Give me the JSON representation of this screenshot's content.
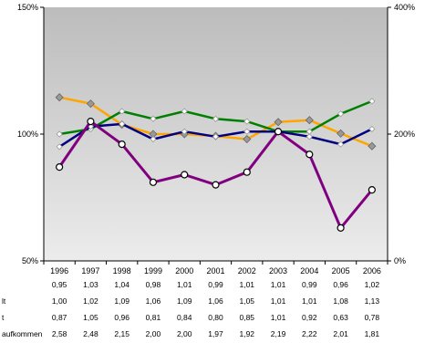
{
  "chart_data": {
    "type": "line",
    "title": "",
    "xlabel": "",
    "ylabel": "",
    "categories": [
      "1996",
      "1997",
      "1998",
      "1999",
      "2000",
      "2001",
      "2002",
      "2003",
      "2004",
      "2005",
      "2006"
    ],
    "y_left": {
      "ticks": [
        "150%",
        "100%",
        "50%"
      ],
      "ylim": [
        50,
        150
      ]
    },
    "y_right": {
      "ticks": [
        "400%",
        "200%",
        "0%"
      ],
      "ylim": [
        0,
        400
      ]
    },
    "grid": false,
    "legend": "none",
    "series": [
      {
        "values": [
          0.95,
          1.03,
          1.04,
          0.98,
          1.01,
          0.99,
          1.01,
          1.01,
          0.99,
          0.96,
          1.02
        ],
        "axis": "left",
        "color": "#000080",
        "marker": "diamond-hollow"
      },
      {
        "values": [
          1.0,
          1.02,
          1.09,
          1.06,
          1.09,
          1.06,
          1.05,
          1.01,
          1.01,
          1.08,
          1.13
        ],
        "axis": "left",
        "color": "#008000",
        "marker": "diamond-hollow"
      },
      {
        "values": [
          0.87,
          1.05,
          0.96,
          0.81,
          0.84,
          0.8,
          0.85,
          1.01,
          0.92,
          0.63,
          0.78
        ],
        "axis": "left",
        "color": "#800080",
        "marker": "circle-hollow"
      },
      {
        "values": [
          2.58,
          2.48,
          2.15,
          2.0,
          2.0,
          1.97,
          1.92,
          2.19,
          2.22,
          2.01,
          1.81
        ],
        "axis": "right",
        "color": "#FFA500",
        "marker": "diamond-gray"
      }
    ],
    "table": {
      "row_labels": [
        "",
        "lt",
        "t",
        "aufkommen"
      ],
      "rows": [
        [
          "0,95",
          "1,03",
          "1,04",
          "0,98",
          "1,01",
          "0,99",
          "1,01",
          "1,01",
          "0,99",
          "0,96",
          "1,02"
        ],
        [
          "1,00",
          "1,02",
          "1,09",
          "1,06",
          "1,09",
          "1,06",
          "1,05",
          "1,01",
          "1,01",
          "1,08",
          "1,13"
        ],
        [
          "0,87",
          "1,05",
          "0,96",
          "0,81",
          "0,84",
          "0,80",
          "0,85",
          "1,01",
          "0,92",
          "0,63",
          "0,78"
        ],
        [
          "2,58",
          "2,48",
          "2,15",
          "2,00",
          "2,00",
          "1,97",
          "1,92",
          "2,19",
          "2,22",
          "2,01",
          "1,81"
        ]
      ]
    }
  }
}
